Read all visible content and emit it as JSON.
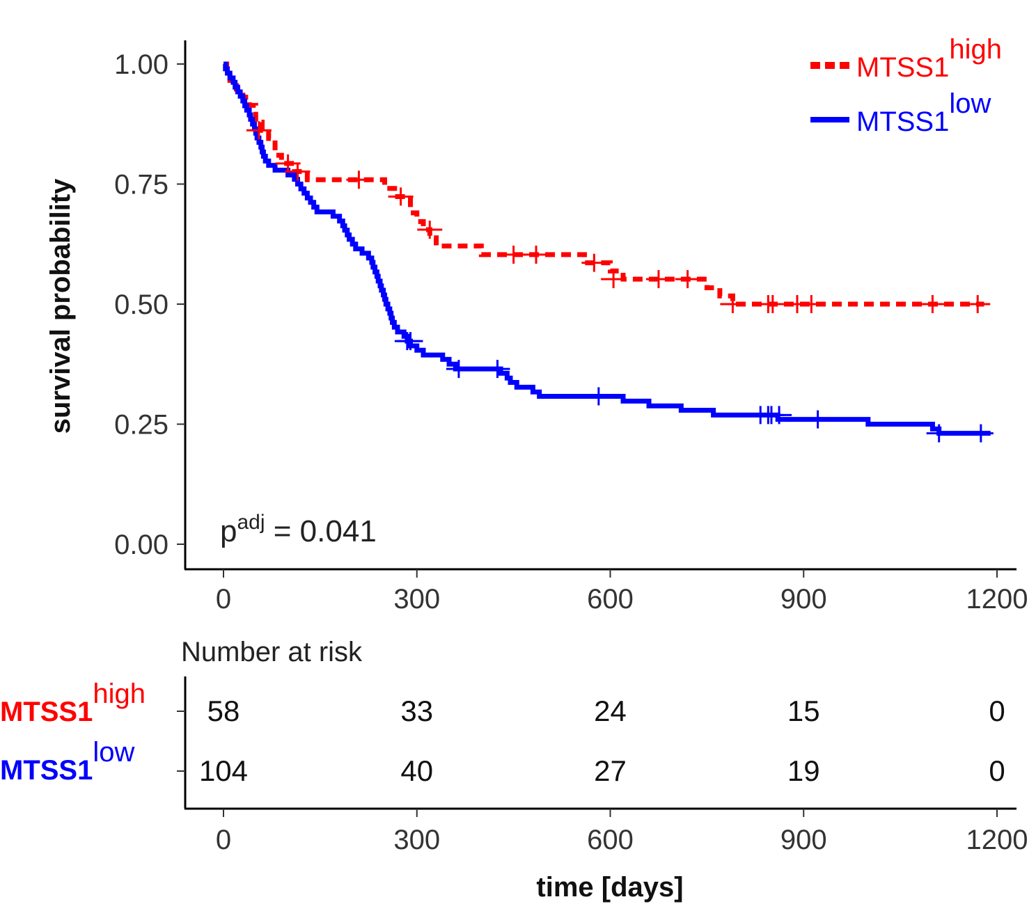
{
  "chart_data": {
    "type": "line",
    "subtype": "kaplan-meier",
    "title": "",
    "xlabel": "time [days]",
    "ylabel": "survival probability",
    "xlim": [
      0,
      1200
    ],
    "ylim": [
      0,
      1
    ],
    "x_ticks": [
      "0",
      "300",
      "600",
      "900",
      "1200"
    ],
    "x_tick_values": [
      0,
      300,
      600,
      900,
      1200
    ],
    "y_ticks": [
      "0.00",
      "0.25",
      "0.50",
      "0.75",
      "1.00"
    ],
    "y_tick_values": [
      0,
      0.25,
      0.5,
      0.75,
      1.0
    ],
    "grid": false,
    "legend_position": "top-right",
    "annotation": {
      "base": "p",
      "superscript": "adj",
      "text": " = 0.041"
    },
    "series": [
      {
        "name": "MTSS1",
        "superscript": "high",
        "color": "#ff0000",
        "linestyle": "dashed",
        "steps": [
          [
            0,
            1.0
          ],
          [
            5,
            0.983
          ],
          [
            10,
            0.966
          ],
          [
            20,
            0.948
          ],
          [
            30,
            0.931
          ],
          [
            40,
            0.914
          ],
          [
            50,
            0.879
          ],
          [
            60,
            0.862
          ],
          [
            70,
            0.845
          ],
          [
            80,
            0.81
          ],
          [
            90,
            0.793
          ],
          [
            110,
            0.776
          ],
          [
            130,
            0.759
          ],
          [
            250,
            0.741
          ],
          [
            270,
            0.724
          ],
          [
            290,
            0.69
          ],
          [
            300,
            0.672
          ],
          [
            310,
            0.655
          ],
          [
            320,
            0.638
          ],
          [
            330,
            0.621
          ],
          [
            400,
            0.603
          ],
          [
            560,
            0.586
          ],
          [
            600,
            0.569
          ],
          [
            620,
            0.552
          ],
          [
            750,
            0.534
          ],
          [
            770,
            0.517
          ],
          [
            790,
            0.5
          ],
          [
            1180,
            0.5
          ]
        ],
        "censored": [
          [
            55,
            0.862
          ],
          [
            100,
            0.793
          ],
          [
            115,
            0.776
          ],
          [
            210,
            0.759
          ],
          [
            275,
            0.724
          ],
          [
            320,
            0.655
          ],
          [
            450,
            0.603
          ],
          [
            485,
            0.603
          ],
          [
            575,
            0.586
          ],
          [
            605,
            0.552
          ],
          [
            675,
            0.552
          ],
          [
            720,
            0.552
          ],
          [
            790,
            0.5
          ],
          [
            845,
            0.5
          ],
          [
            852,
            0.5
          ],
          [
            890,
            0.5
          ],
          [
            912,
            0.5
          ],
          [
            1100,
            0.5
          ],
          [
            1170,
            0.5
          ]
        ]
      },
      {
        "name": "MTSS1",
        "superscript": "low",
        "color": "#0000ff",
        "linestyle": "solid",
        "steps": [
          [
            0,
            1.0
          ],
          [
            3,
            0.99
          ],
          [
            6,
            0.981
          ],
          [
            10,
            0.971
          ],
          [
            15,
            0.962
          ],
          [
            18,
            0.952
          ],
          [
            22,
            0.942
          ],
          [
            26,
            0.933
          ],
          [
            30,
            0.923
          ],
          [
            33,
            0.913
          ],
          [
            36,
            0.904
          ],
          [
            40,
            0.894
          ],
          [
            42,
            0.885
          ],
          [
            45,
            0.875
          ],
          [
            48,
            0.865
          ],
          [
            50,
            0.856
          ],
          [
            52,
            0.846
          ],
          [
            55,
            0.837
          ],
          [
            58,
            0.827
          ],
          [
            60,
            0.817
          ],
          [
            62,
            0.808
          ],
          [
            65,
            0.798
          ],
          [
            70,
            0.789
          ],
          [
            80,
            0.779
          ],
          [
            100,
            0.769
          ],
          [
            110,
            0.76
          ],
          [
            115,
            0.75
          ],
          [
            120,
            0.74
          ],
          [
            125,
            0.731
          ],
          [
            130,
            0.721
          ],
          [
            135,
            0.712
          ],
          [
            140,
            0.702
          ],
          [
            145,
            0.692
          ],
          [
            170,
            0.683
          ],
          [
            180,
            0.673
          ],
          [
            185,
            0.663
          ],
          [
            188,
            0.654
          ],
          [
            192,
            0.644
          ],
          [
            195,
            0.635
          ],
          [
            200,
            0.625
          ],
          [
            205,
            0.615
          ],
          [
            215,
            0.606
          ],
          [
            225,
            0.596
          ],
          [
            230,
            0.587
          ],
          [
            232,
            0.577
          ],
          [
            235,
            0.567
          ],
          [
            238,
            0.558
          ],
          [
            240,
            0.548
          ],
          [
            243,
            0.538
          ],
          [
            245,
            0.529
          ],
          [
            248,
            0.519
          ],
          [
            250,
            0.51
          ],
          [
            252,
            0.5
          ],
          [
            255,
            0.49
          ],
          [
            258,
            0.481
          ],
          [
            260,
            0.471
          ],
          [
            262,
            0.462
          ],
          [
            265,
            0.452
          ],
          [
            270,
            0.442
          ],
          [
            280,
            0.433
          ],
          [
            285,
            0.423
          ],
          [
            290,
            0.413
          ],
          [
            300,
            0.404
          ],
          [
            310,
            0.394
          ],
          [
            340,
            0.385
          ],
          [
            350,
            0.375
          ],
          [
            360,
            0.365
          ],
          [
            430,
            0.356
          ],
          [
            440,
            0.346
          ],
          [
            445,
            0.337
          ],
          [
            455,
            0.327
          ],
          [
            480,
            0.317
          ],
          [
            490,
            0.308
          ],
          [
            620,
            0.298
          ],
          [
            660,
            0.288
          ],
          [
            710,
            0.279
          ],
          [
            760,
            0.269
          ],
          [
            860,
            0.26
          ],
          [
            1000,
            0.25
          ],
          [
            1100,
            0.24
          ],
          [
            1110,
            0.231
          ],
          [
            1190,
            0.231
          ]
        ],
        "censored": [
          [
            285,
            0.423
          ],
          [
            290,
            0.423
          ],
          [
            365,
            0.365
          ],
          [
            425,
            0.365
          ],
          [
            582,
            0.308
          ],
          [
            833,
            0.269
          ],
          [
            845,
            0.269
          ],
          [
            850,
            0.269
          ],
          [
            862,
            0.269
          ],
          [
            922,
            0.26
          ],
          [
            1110,
            0.231
          ],
          [
            1175,
            0.231
          ]
        ]
      }
    ],
    "risk_table": {
      "title": "Number at risk",
      "times": [
        0,
        300,
        600,
        900,
        1200
      ],
      "x_ticks": [
        "0",
        "300",
        "600",
        "900",
        "1200"
      ],
      "rows": [
        {
          "name": "MTSS1",
          "superscript": "high",
          "color": "#ff0000",
          "values": [
            "58",
            "33",
            "24",
            "15",
            "0"
          ]
        },
        {
          "name": "MTSS1",
          "superscript": "low",
          "color": "#0000ff",
          "values": [
            "104",
            "40",
            "27",
            "19",
            "0"
          ]
        }
      ]
    }
  }
}
